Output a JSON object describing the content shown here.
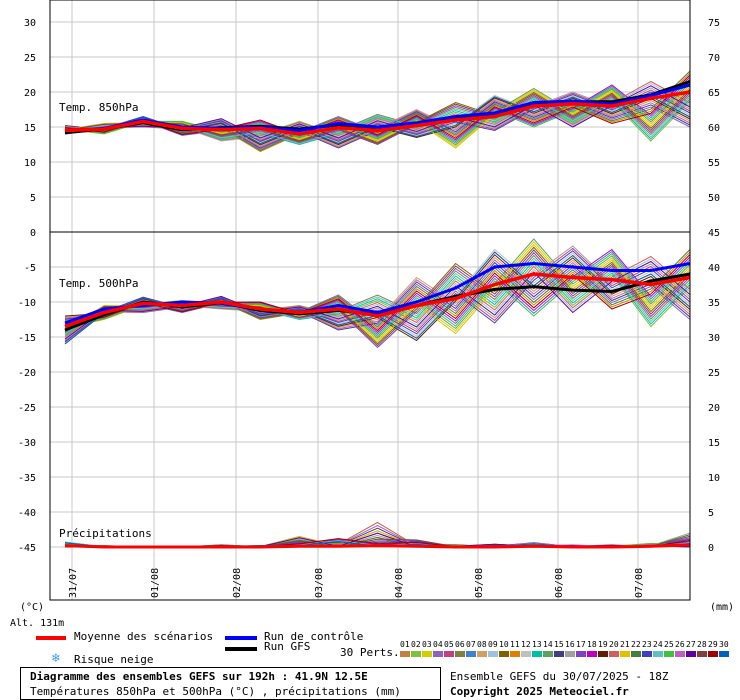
{
  "panels": {
    "t850_label": "Temp. 850hPa",
    "t500_label": "Temp. 500hPa",
    "precip_label": "Précipitations"
  },
  "axes": {
    "left_unit": "(°C)",
    "right_unit": "(mm)",
    "altitude": "Alt. 131m",
    "left_ticks": [
      "30",
      "25",
      "20",
      "15",
      "10",
      "5",
      "0",
      "-5",
      "-10",
      "-15",
      "-20",
      "-25",
      "-30",
      "-35",
      "-40",
      "-45"
    ],
    "right_top_ticks": [
      "75",
      "70",
      "65",
      "60",
      "55",
      "50"
    ],
    "right_bottom_ticks": [
      "45",
      "40",
      "35",
      "30",
      "25",
      "20",
      "15",
      "10",
      "5",
      "0"
    ],
    "date_labels": [
      "31/07",
      "01/08",
      "02/08",
      "03/08",
      "04/08",
      "05/08",
      "06/08",
      "07/08"
    ]
  },
  "legend": {
    "mean": "Moyenne des scénarios",
    "control": "Run de contrôle",
    "gfs": "Run GFS",
    "snow": "Risque neige",
    "perts": "30 Perts.",
    "pert_ids": [
      "01",
      "02",
      "03",
      "04",
      "05",
      "06",
      "07",
      "08",
      "09",
      "10",
      "11",
      "12",
      "13",
      "14",
      "15",
      "16",
      "17",
      "18",
      "19",
      "20",
      "21",
      "22",
      "23",
      "24",
      "25",
      "26",
      "27",
      "28",
      "29",
      "30"
    ],
    "mean_color": "#ff0000",
    "control_color": "#0000ff",
    "gfs_color": "#000000",
    "pert_colors": [
      "#c08040",
      "#80c040",
      "#d0d000",
      "#9060c0",
      "#c04080",
      "#808040",
      "#4080d0",
      "#d0a060",
      "#a0c0e0",
      "#806000",
      "#e08000",
      "#c0c0c0",
      "#00c0a0",
      "#60a060",
      "#404080",
      "#a0a0a0",
      "#8040c0",
      "#c000c0",
      "#602000",
      "#d06060",
      "#e0c000",
      "#408040",
      "#4040c0",
      "#60c0c0",
      "#40c040",
      "#c060c0",
      "#6000a0",
      "#804040",
      "#a00000",
      "#0060c0"
    ]
  },
  "footer": {
    "title": "Diagramme des ensembles GEFS sur 192h : 41.9N 12.5E",
    "subtitle": "Températures 850hPa et 500hPa (°C) , précipitations (mm)",
    "run": "Ensemble GEFS du 30/07/2025 - 18Z",
    "copyright": "Copyright 2025 Meteociel.fr"
  },
  "chart_data": {
    "type": "line",
    "x_unit": "forecast hour (from 30/07/2025 18Z)",
    "x": [
      0,
      12,
      24,
      36,
      48,
      60,
      72,
      84,
      96,
      108,
      120,
      132,
      144,
      156,
      168,
      180,
      192
    ],
    "t850": {
      "ylabel": "°C",
      "series": [
        {
          "name": "Moyenne des scénarios",
          "values": [
            14.5,
            14.7,
            15.8,
            14.8,
            14.6,
            14.8,
            14.0,
            14.9,
            14.5,
            15.2,
            16.0,
            16.5,
            18.0,
            18.3,
            18.0,
            19.1,
            20.0
          ]
        },
        {
          "name": "Run de contrôle",
          "values": [
            14.5,
            14.8,
            16.0,
            15.0,
            14.8,
            15.0,
            14.5,
            15.5,
            15.0,
            15.6,
            16.5,
            17.0,
            18.5,
            18.7,
            18.3,
            19.5,
            21.0
          ]
        },
        {
          "name": "Run GFS",
          "values": [
            14.2,
            14.7,
            15.6,
            14.6,
            14.9,
            15.1,
            14.7,
            15.3,
            14.9,
            15.4,
            16.4,
            16.9,
            18.4,
            18.6,
            18.6,
            19.6,
            21.5
          ]
        },
        {
          "name": "min",
          "values": [
            14.0,
            14.0,
            15.0,
            13.8,
            13.0,
            11.5,
            12.5,
            12.0,
            12.5,
            13.5,
            12.0,
            14.5,
            15.0,
            15.0,
            15.5,
            13.0,
            15.0
          ]
        },
        {
          "name": "max",
          "values": [
            15.2,
            15.5,
            16.5,
            15.8,
            16.2,
            16.0,
            15.8,
            16.5,
            16.8,
            17.5,
            18.5,
            19.5,
            20.5,
            20.0,
            21.0,
            21.5,
            23.0
          ]
        }
      ]
    },
    "t500": {
      "ylabel": "°C",
      "series": [
        {
          "name": "Moyenne des scénarios",
          "values": [
            -13.5,
            -11.5,
            -10.2,
            -10.5,
            -10.0,
            -11.0,
            -11.5,
            -11.0,
            -12.0,
            -10.5,
            -9.5,
            -7.5,
            -6.0,
            -6.5,
            -6.8,
            -7.5,
            -6.5
          ]
        },
        {
          "name": "Run de contrôle",
          "values": [
            -13.0,
            -11.0,
            -10.5,
            -10.0,
            -10.2,
            -11.0,
            -11.5,
            -10.5,
            -11.5,
            -10.0,
            -8.0,
            -5.0,
            -4.5,
            -5.0,
            -5.5,
            -5.5,
            -4.5
          ]
        },
        {
          "name": "Run GFS",
          "values": [
            -14.0,
            -11.8,
            -10.0,
            -10.7,
            -10.1,
            -11.2,
            -11.7,
            -11.2,
            -11.8,
            -10.5,
            -9.2,
            -8.2,
            -7.8,
            -8.3,
            -8.5,
            -7.0,
            -6.0
          ]
        },
        {
          "name": "min",
          "values": [
            -16.0,
            -12.5,
            -11.5,
            -11.5,
            -11.0,
            -12.5,
            -12.5,
            -14.0,
            -16.5,
            -15.5,
            -14.5,
            -13.0,
            -12.0,
            -11.5,
            -11.0,
            -13.5,
            -12.5
          ]
        },
        {
          "name": "max",
          "values": [
            -12.0,
            -10.5,
            -9.3,
            -9.8,
            -9.2,
            -10.0,
            -10.5,
            -9.0,
            -9.0,
            -6.5,
            -4.5,
            -2.5,
            -1.0,
            -2.0,
            -2.5,
            -3.5,
            -2.5
          ]
        }
      ]
    },
    "precip": {
      "ylabel": "mm",
      "series": [
        {
          "name": "Moyenne des scénarios",
          "values": [
            0.2,
            0,
            0,
            0,
            0,
            0,
            0.1,
            0.1,
            0.2,
            0.1,
            0,
            0,
            0.1,
            0,
            0,
            0.1,
            0.3
          ]
        },
        {
          "name": "max",
          "values": [
            0.7,
            0.2,
            0.1,
            0,
            0.3,
            0.2,
            1.5,
            1.2,
            3.5,
            1.0,
            0.3,
            0.4,
            0.6,
            0.3,
            0.3,
            0.5,
            2.0
          ]
        }
      ]
    },
    "ylim_left": [
      -45,
      30
    ],
    "ylim_right_top": [
      50,
      75
    ],
    "ylim_right_bottom": [
      0,
      45
    ]
  }
}
